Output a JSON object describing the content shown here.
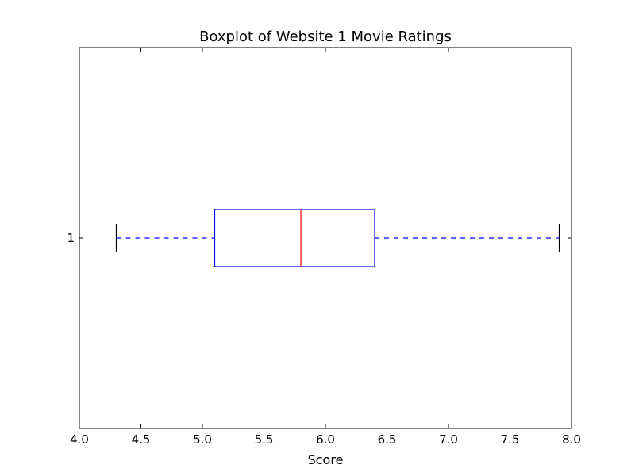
{
  "chart_data": {
    "type": "boxplot",
    "orientation": "horizontal",
    "title": "Boxplot of Website 1 Movie Ratings",
    "xlabel": "Score",
    "ylabel": "",
    "xlim": [
      4.0,
      8.0
    ],
    "x_ticks": [
      4.0,
      4.5,
      5.0,
      5.5,
      6.0,
      6.5,
      7.0,
      7.5,
      8.0
    ],
    "x_tick_labels": [
      "4.0",
      "4.5",
      "5.0",
      "5.5",
      "6.0",
      "6.5",
      "7.0",
      "7.5",
      "8.0"
    ],
    "categories": [
      "1"
    ],
    "boxes": [
      {
        "category": "1",
        "whisker_low": 4.3,
        "q1": 5.1,
        "median": 5.8,
        "q3": 6.4,
        "whisker_high": 7.9
      }
    ],
    "grid": false,
    "colors": {
      "box": "#0000ff",
      "median": "#ff0000",
      "whisker": "#0000ff",
      "cap": "#000000",
      "frame": "#000000"
    }
  }
}
